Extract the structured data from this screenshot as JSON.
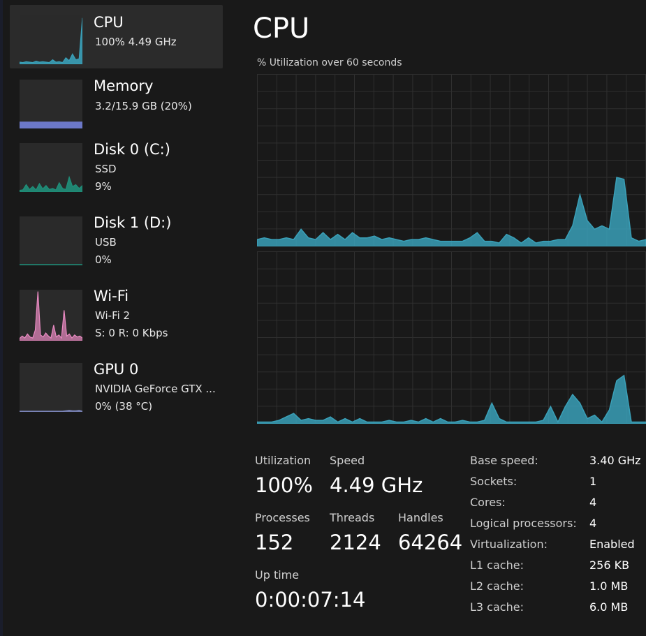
{
  "colors": {
    "cpu": "#3aa0b8",
    "memory": "#6c78c8",
    "disk": "#1f8f7a",
    "wifi": "#e98ac2",
    "gpu": "#7a84b8",
    "grid": "#2f2f2f"
  },
  "sidebar": {
    "items": [
      {
        "title": "CPU",
        "sub1": "100%  4.49 GHz",
        "sub2": ""
      },
      {
        "title": "Memory",
        "sub1": "3.2/15.9 GB (20%)",
        "sub2": ""
      },
      {
        "title": "Disk 0 (C:)",
        "sub1": "SSD",
        "sub2": "9%"
      },
      {
        "title": "Disk 1 (D:)",
        "sub1": "USB",
        "sub2": "0%"
      },
      {
        "title": "Wi-Fi",
        "sub1": "Wi-Fi 2",
        "sub2": "S:  0  R:  0 Kbps"
      },
      {
        "title": "GPU 0",
        "sub1": "NVIDIA GeForce GTX ...",
        "sub2": "0%  (38 °C)"
      }
    ]
  },
  "main": {
    "title": "CPU",
    "chart_caption": "% Utilization over 60 seconds"
  },
  "stats": {
    "utilization_label": "Utilization",
    "utilization_value": "100%",
    "speed_label": "Speed",
    "speed_value": "4.49 GHz",
    "processes_label": "Processes",
    "processes_value": "152",
    "threads_label": "Threads",
    "threads_value": "2124",
    "handles_label": "Handles",
    "handles_value": "64264",
    "uptime_label": "Up time",
    "uptime_value": "0:00:07:14"
  },
  "specs": [
    {
      "label": "Base speed:",
      "value": "3.40 GHz"
    },
    {
      "label": "Sockets:",
      "value": "1"
    },
    {
      "label": "Cores:",
      "value": "4"
    },
    {
      "label": "Logical processors:",
      "value": "4"
    },
    {
      "label": "Virtualization:",
      "value": "Enabled"
    },
    {
      "label": "L1 cache:",
      "value": "256 KB"
    },
    {
      "label": "L2 cache:",
      "value": "1.0 MB"
    },
    {
      "label": "L3 cache:",
      "value": "6.0 MB"
    }
  ],
  "chart_data": [
    {
      "type": "area",
      "name": "cpu-core-graph-1",
      "ylim": [
        0,
        100
      ],
      "values": [
        4,
        5,
        4,
        4,
        5,
        4,
        10,
        5,
        4,
        8,
        4,
        7,
        4,
        8,
        5,
        5,
        6,
        4,
        5,
        4,
        3,
        4,
        4,
        5,
        4,
        3,
        3,
        3,
        3,
        5,
        8,
        3,
        3,
        2,
        7,
        5,
        2,
        5,
        2,
        3,
        3,
        4,
        4,
        12,
        30,
        15,
        10,
        12,
        10,
        40,
        39,
        5,
        3,
        4
      ]
    },
    {
      "type": "area",
      "name": "cpu-core-graph-2",
      "ylim": [
        0,
        100
      ],
      "values": [
        1,
        1,
        1,
        2,
        4,
        6,
        2,
        3,
        2,
        2,
        4,
        1,
        3,
        1,
        3,
        1,
        1,
        1,
        2,
        1,
        1,
        2,
        1,
        3,
        1,
        3,
        1,
        1,
        2,
        1,
        1,
        2,
        12,
        3,
        1,
        1,
        1,
        1,
        1,
        2,
        10,
        1,
        10,
        17,
        12,
        3,
        5,
        1,
        8,
        25,
        28,
        1,
        1,
        1
      ]
    }
  ],
  "sidebar_thumbs": {
    "cpu": [
      3,
      2,
      4,
      3,
      2,
      5,
      3,
      4,
      3,
      2,
      8,
      3,
      4,
      2,
      12,
      6,
      20,
      8,
      10,
      96
    ],
    "memory": [
      20,
      20,
      20,
      20,
      20,
      20,
      20,
      20,
      20,
      20,
      20,
      20,
      20,
      20,
      20,
      20,
      20,
      20,
      20,
      20
    ],
    "disk0": [
      2,
      3,
      14,
      4,
      10,
      3,
      16,
      5,
      12,
      4,
      6,
      3,
      18,
      6,
      4,
      30,
      10,
      14,
      6,
      12
    ],
    "disk1": [
      0,
      0,
      0,
      0,
      0,
      0,
      0,
      0,
      0,
      0,
      0,
      0,
      0,
      0,
      0,
      0,
      0,
      0,
      0,
      0
    ],
    "wifi": [
      3,
      8,
      4,
      12,
      6,
      4,
      20,
      98,
      10,
      6,
      14,
      8,
      4,
      30,
      6,
      10,
      4,
      60,
      8,
      12,
      4,
      10,
      6,
      8,
      4
    ],
    "gpu": [
      0,
      0,
      0,
      0,
      0,
      0,
      0,
      0,
      0,
      0,
      0,
      0,
      0,
      0,
      1,
      2,
      1,
      1,
      2,
      0
    ]
  }
}
